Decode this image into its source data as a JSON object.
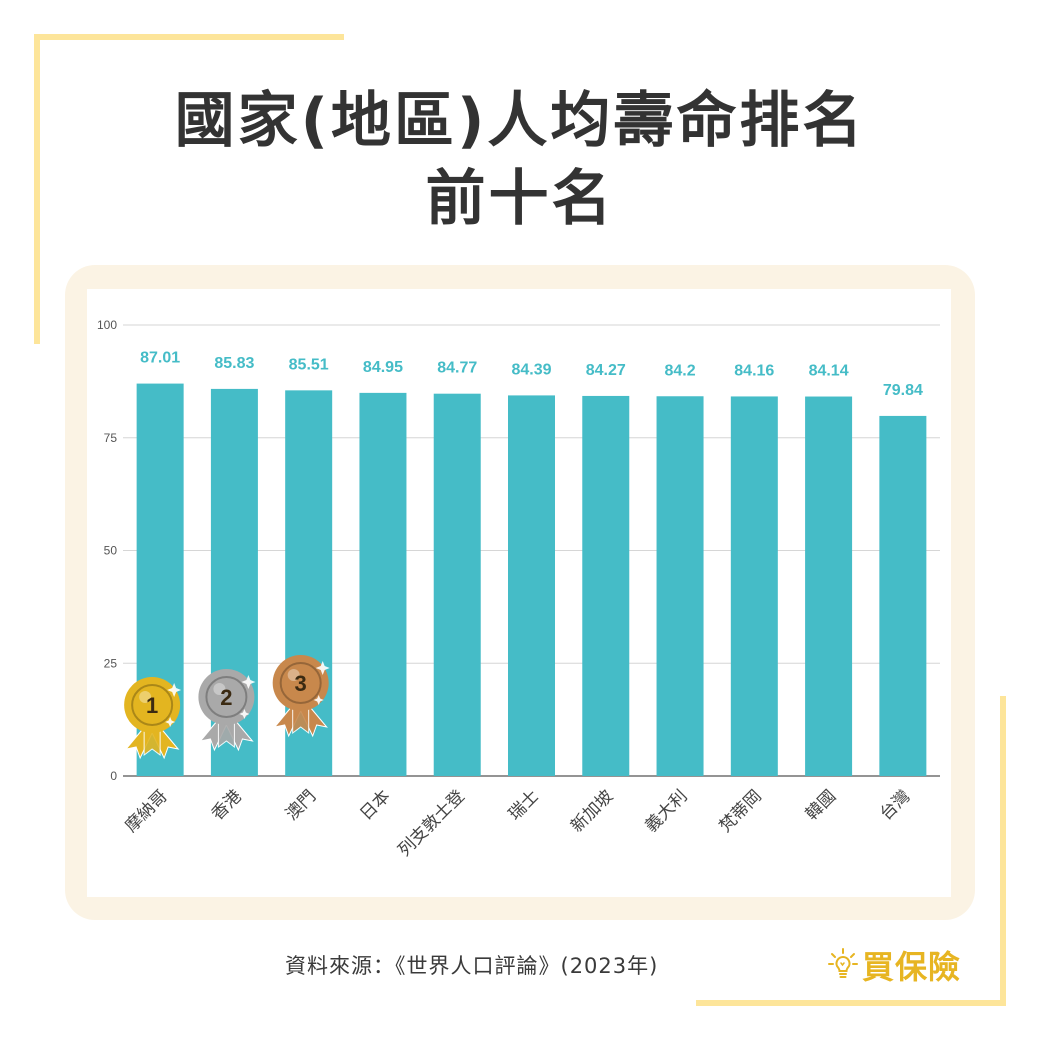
{
  "title": {
    "line1": "國家(地區)人均壽命排名",
    "line2": "前十名"
  },
  "source": "資料來源：《世界人口評論》(2023年)",
  "brand": {
    "name": "買保險",
    "icon": "lightbulb-icon"
  },
  "colors": {
    "bar": "#45bcc7",
    "value_label": "#45bcc7",
    "accent_lines": "#fde59a",
    "card": "#fbf3e4",
    "brand": "#e7b522",
    "gold": "#e3b520",
    "silver": "#a9a9a9",
    "bronze": "#c8884c"
  },
  "medals": [
    "1",
    "2",
    "3"
  ],
  "chart_data": {
    "type": "bar",
    "categories": [
      "摩納哥",
      "香港",
      "澳門",
      "日本",
      "列支敦士登",
      "瑞士",
      "新加坡",
      "義大利",
      "梵蒂岡",
      "韓國",
      "台灣"
    ],
    "values": [
      87.01,
      85.83,
      85.51,
      84.95,
      84.77,
      84.39,
      84.27,
      84.2,
      84.16,
      84.14,
      79.84
    ],
    "value_labels": [
      "87.01",
      "85.83",
      "85.51",
      "84.95",
      "84.77",
      "84.39",
      "84.27",
      "84.2",
      "84.16",
      "84.14",
      "79.84"
    ],
    "yticks": [
      0,
      25,
      50,
      75,
      100
    ],
    "ylim": [
      0,
      100
    ],
    "grid": true,
    "xlabel": "",
    "ylabel": ""
  }
}
